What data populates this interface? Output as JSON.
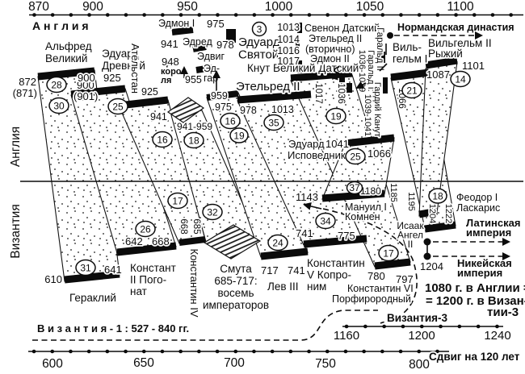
{
  "sides": {
    "england": "Англия",
    "byzantium": "Византия"
  },
  "top_axis": {
    "region": "А н г л и я",
    "ticks": [
      "870",
      "900",
      "950",
      "1000",
      "1050",
      "1100"
    ]
  },
  "england": {
    "alfred": {
      "name": "Альфред\nВеликий",
      "start": "872",
      "start_alt": "(871)",
      "end": "900",
      "end_alt": "(901)",
      "dur_a": "28",
      "dur_b": "30"
    },
    "edward_elder": {
      "name": "Эдуард\nДревний",
      "start": "900",
      "end": "925",
      "dur": "25"
    },
    "athelstan": {
      "name": "Ательстан",
      "start": "925",
      "end": "941",
      "dur": "16"
    },
    "three_kings": {
      "label": "Три\nкоро-\nля",
      "year": "955",
      "range": "941-959",
      "dur": "18"
    },
    "edmund1": {
      "name": "Эдмон I",
      "year": "941"
    },
    "edred": {
      "name": "Эдред",
      "year": "948"
    },
    "edwy": {
      "name": "Эдвиг"
    },
    "edgar": {
      "name": "Эд-\nгар",
      "start": "959",
      "end": "975",
      "dur": "16",
      "dur2": "19"
    },
    "edward_martyr": {
      "name": "Эдуард\nСвятой",
      "start": "975",
      "end": "978",
      "dur": "3"
    },
    "ethelred2": {
      "name": "Этельред II",
      "start": "978",
      "end": "1013",
      "dur": "35"
    },
    "svenon_block": {
      "years": [
        "1013",
        "1014",
        "1016",
        "1017"
      ],
      "rows": [
        "Свенон Датский",
        "Этельред II",
        "(вторично)",
        "Эдмон II"
      ]
    },
    "canute": {
      "name": "Кнут Великий Датский",
      "start": "1017",
      "end": "1036",
      "dur": "19"
    },
    "harold2": {
      "name": "Гаральд II"
    },
    "harold1": {
      "name": "Гаральд I:",
      "years": "1036-1039"
    },
    "hardicanute": {
      "name": "Гардий Канут",
      "years": "1039-1041"
    },
    "edward_confessor": {
      "name1": "Эдуард",
      "name2": "Исповедник",
      "start": "1041",
      "end": "1066",
      "dur": "25"
    },
    "william1": {
      "name": "Виль-\nгельм I",
      "start": "1066",
      "dur": "21"
    },
    "william2": {
      "name": "Вильгельм II\nРыжий",
      "start": "1087",
      "end": "1101",
      "dur": "14"
    },
    "norman_dynasty": "Нормандская династия"
  },
  "byzantium": {
    "heraclius": {
      "name": "Гераклий",
      "start": "610",
      "end": "641",
      "dur": "31"
    },
    "constans2": {
      "name": "Констант\nII Пого-\nнат",
      "start": "642",
      "end": "668",
      "dur": "26"
    },
    "constantine4": {
      "name": "Константин IV",
      "start": "668",
      "end": "685",
      "dur": "17",
      "dur2": "32"
    },
    "troubles": {
      "text": "Смута\n685-717:\nвосемь\nимператоров"
    },
    "leo3": {
      "name": "Лев III",
      "start": "717",
      "end": "741",
      "dur": "24"
    },
    "constantine5": {
      "name": "Константин\nV Копро-\nним",
      "start": "741",
      "end": "775",
      "dur": "34"
    },
    "constantine6": {
      "name1": "Константин VI",
      "name2": "Порфирородный",
      "start": "780",
      "end": "797",
      "dur": "17"
    },
    "manuel": {
      "name": "Мануил I\nКомнен",
      "start": "1143",
      "end": "1180",
      "dur": "37"
    },
    "isaac": {
      "name": "Исаак\nАнгел\nII",
      "y1185": "1185",
      "y1195": "1195",
      "y1204": "1204"
    },
    "theodore": {
      "name": "Феодор I\nЛаскарис",
      "end": "1222",
      "dur": "18"
    },
    "latin_empire": "Латинская\nимперия",
    "nicaean_empire": "Никейская\nимперия",
    "year_1204": "1204"
  },
  "notes": {
    "equation1": "1080 г. в Англии =",
    "equation2": "= 1200 г. в Визан-",
    "equation3": "тии-3",
    "byzantium1": "В и з а н т и я - 1 :  527 - 840 гг.",
    "shift": "Сдвиг на 120 лет"
  },
  "byzantium3_axis": {
    "label": "Византия-3",
    "ticks": [
      "1160",
      "1200",
      "1240"
    ]
  },
  "bottom_axis": {
    "ticks": [
      "600",
      "650",
      "700",
      "750",
      "800"
    ]
  }
}
